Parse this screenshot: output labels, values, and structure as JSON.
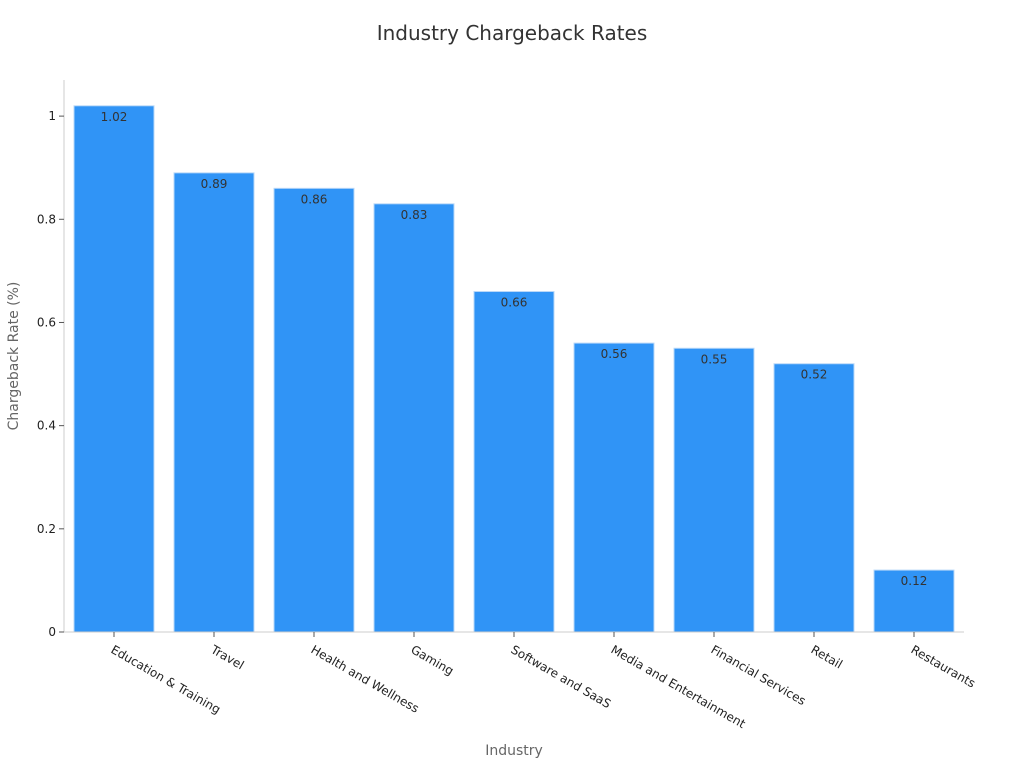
{
  "chart_data": {
    "type": "bar",
    "title": "Industry Chargeback Rates",
    "xlabel": "Industry",
    "ylabel": "Chargeback Rate (%)",
    "categories": [
      "Education & Training",
      "Travel",
      "Health and Wellness",
      "Gaming",
      "Software and SaaS",
      "Media and Entertainment",
      "Financial Services",
      "Retail",
      "Restaurants"
    ],
    "values": [
      1.02,
      0.89,
      0.86,
      0.83,
      0.66,
      0.56,
      0.55,
      0.52,
      0.12
    ],
    "value_labels": [
      "1.02",
      "0.89",
      "0.86",
      "0.83",
      "0.66",
      "0.56",
      "0.55",
      "0.52",
      "0.12"
    ],
    "yticks": [
      0,
      0.2,
      0.4,
      0.6,
      0.8,
      1
    ],
    "ytick_labels": [
      "0",
      "0.2",
      "0.4",
      "0.6",
      "0.8",
      "1"
    ],
    "ylim": [
      0,
      1.07
    ],
    "grid": false,
    "legend": "none",
    "colors": {
      "bar": "#3094f6",
      "bar_edge": "#b9d8f8",
      "axis": "#cccccc"
    }
  }
}
